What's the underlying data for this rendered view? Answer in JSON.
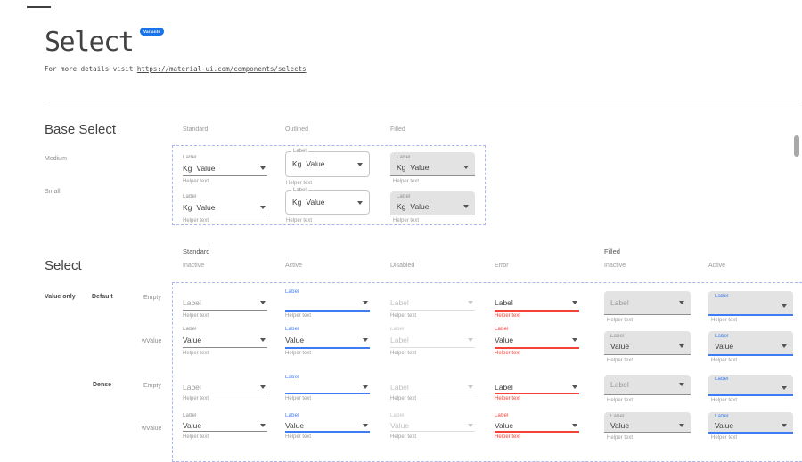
{
  "page": {
    "title": "Select",
    "badge": "Variants",
    "subtitle_prefix": "For more details visit ",
    "subtitle_link": "https://material-ui.com/components/selects"
  },
  "colors": {
    "accent_blue": "#3D7CF4",
    "badge_blue": "#1A73E8",
    "error_red": "#F44336",
    "filled_bg": "#E3E3E3",
    "dashed_border": "#ABB7EE"
  },
  "base_select": {
    "heading": "Base Select",
    "column_headers": [
      "Standard",
      "Outlined",
      "Filled"
    ],
    "row_headers": [
      "Medium",
      "Small"
    ],
    "cell": {
      "label": "Label",
      "adornment": "Kg",
      "value": "Value",
      "helper": "Helper text"
    }
  },
  "select_grid": {
    "heading": "Select",
    "group_headers": [
      "Standard",
      "Filled"
    ],
    "column_headers": [
      "Inactive",
      "Active",
      "Disabled",
      "Error",
      "Inactive",
      "Active"
    ],
    "side_labels": {
      "value_only": "Value only",
      "default": "Default",
      "dense": "Dense",
      "empty": "Empty",
      "wvalue": "wValue"
    },
    "texts": {
      "helper": "Helper text"
    },
    "rows": [
      {
        "dense": false,
        "cells": [
          {
            "type": "standard",
            "state": "inactive",
            "mini": "",
            "value": "Label",
            "ghost": true
          },
          {
            "type": "standard",
            "state": "active",
            "mini": "Label",
            "value": "",
            "ghost": false
          },
          {
            "type": "standard",
            "state": "disabled",
            "mini": "",
            "value": "Label",
            "ghost": false
          },
          {
            "type": "standard",
            "state": "error",
            "mini": "",
            "value": "Label",
            "ghost": false
          },
          {
            "type": "filled",
            "state": "inactive",
            "mini": "",
            "value": "Label",
            "ghost": true
          },
          {
            "type": "filled",
            "state": "active",
            "mini": "Label",
            "value": "",
            "ghost": false
          }
        ]
      },
      {
        "dense": false,
        "cells": [
          {
            "type": "standard",
            "state": "inactive",
            "mini": "Label",
            "value": "Value",
            "ghost": false
          },
          {
            "type": "standard",
            "state": "active",
            "mini": "Label",
            "value": "Value",
            "ghost": false
          },
          {
            "type": "standard",
            "state": "disabled",
            "mini": "Label",
            "value": "Label",
            "ghost": false
          },
          {
            "type": "standard",
            "state": "error",
            "mini": "Label",
            "value": "Value",
            "ghost": false
          },
          {
            "type": "filled",
            "state": "inactive",
            "mini": "Label",
            "value": "Value",
            "ghost": false
          },
          {
            "type": "filled",
            "state": "active",
            "mini": "Label",
            "value": "Value",
            "ghost": false
          }
        ]
      },
      {
        "dense": true,
        "cells": [
          {
            "type": "standard",
            "state": "inactive",
            "mini": "",
            "value": "Label",
            "ghost": true
          },
          {
            "type": "standard",
            "state": "active",
            "mini": "Label",
            "value": "",
            "ghost": false
          },
          {
            "type": "standard",
            "state": "disabled",
            "mini": "",
            "value": "Label",
            "ghost": false
          },
          {
            "type": "standard",
            "state": "error",
            "mini": "",
            "value": "Label",
            "ghost": false
          },
          {
            "type": "filled",
            "state": "inactive",
            "mini": "",
            "value": "Label",
            "ghost": true
          },
          {
            "type": "filled",
            "state": "active",
            "mini": "Label",
            "value": "",
            "ghost": false
          }
        ]
      },
      {
        "dense": true,
        "cells": [
          {
            "type": "standard",
            "state": "inactive",
            "mini": "Label",
            "value": "Value",
            "ghost": false
          },
          {
            "type": "standard",
            "state": "active",
            "mini": "Label",
            "value": "Value",
            "ghost": false
          },
          {
            "type": "standard",
            "state": "disabled",
            "mini": "Label",
            "value": "Value",
            "ghost": false
          },
          {
            "type": "standard",
            "state": "error",
            "mini": "Label",
            "value": "Value",
            "ghost": false
          },
          {
            "type": "filled",
            "state": "inactive",
            "mini": "Label",
            "value": "Value",
            "ghost": false
          },
          {
            "type": "filled",
            "state": "active",
            "mini": "Label",
            "value": "Value",
            "ghost": false
          }
        ]
      }
    ]
  }
}
